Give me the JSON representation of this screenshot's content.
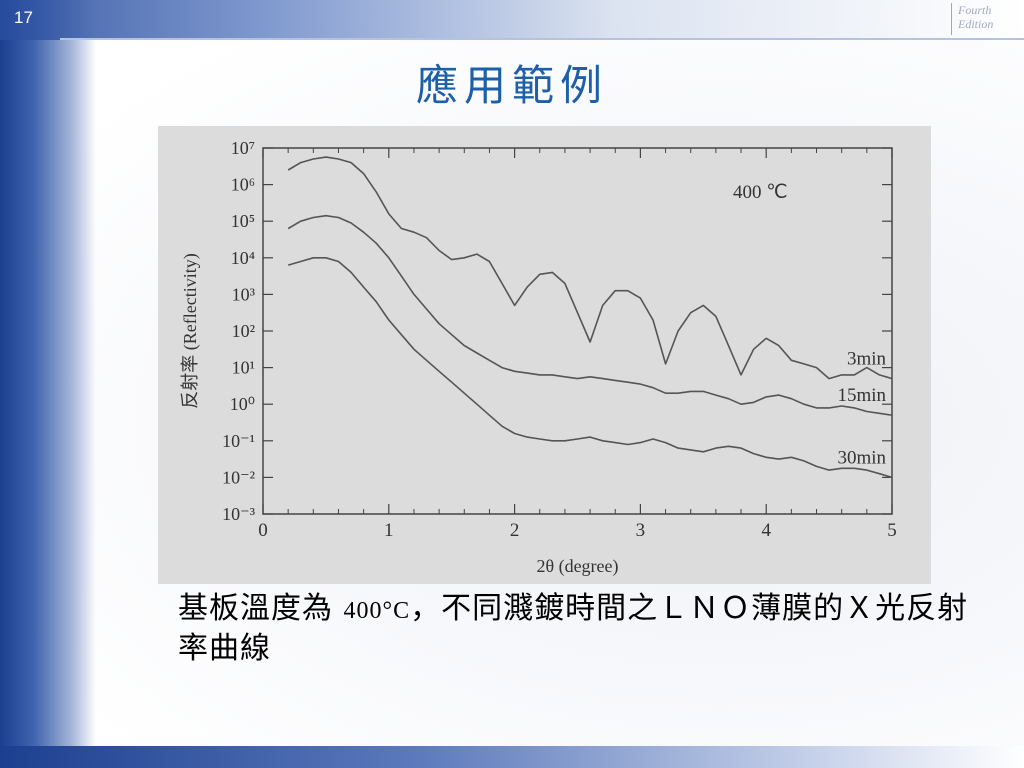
{
  "slide": {
    "number": "17",
    "edition": "Fourth Edition",
    "title": "應用範例"
  },
  "caption": {
    "prefix": "基板溫度為",
    "formula": "400°C",
    "suffix": "，不同濺鍍時間之ＬＮＯ薄膜的Ｘ光反射率曲線"
  },
  "chart_data": {
    "type": "line",
    "annotation": "400 ℃",
    "xlabel": "2θ (degree)",
    "ylabel": "反射率 (Reflectivity)",
    "xlim": [
      0,
      5
    ],
    "ylim": [
      -3,
      7
    ],
    "y_scale": "log",
    "x_ticks": [
      "0",
      "1",
      "2",
      "3",
      "4",
      "5"
    ],
    "y_ticks": [
      "10⁷",
      "10⁶",
      "10⁵",
      "10⁴",
      "10³",
      "10²",
      "10¹",
      "10⁰",
      "10⁻¹",
      "10⁻²",
      "10⁻³"
    ],
    "series": [
      {
        "name": "3min",
        "x": [
          0.2,
          0.3,
          0.4,
          0.5,
          0.6,
          0.7,
          0.8,
          0.9,
          1.0,
          1.1,
          1.2,
          1.3,
          1.4,
          1.5,
          1.6,
          1.7,
          1.8,
          1.9,
          2.0,
          2.1,
          2.2,
          2.3,
          2.4,
          2.5,
          2.6,
          2.7,
          2.8,
          2.9,
          3.0,
          3.1,
          3.2,
          3.3,
          3.4,
          3.5,
          3.6,
          3.7,
          3.8,
          3.9,
          4.0,
          4.1,
          4.2,
          4.3,
          4.4,
          4.5,
          4.6,
          4.7,
          4.8,
          4.9,
          5.0
        ],
        "log10_y": [
          6.4,
          6.6,
          6.7,
          6.75,
          6.7,
          6.6,
          6.3,
          5.8,
          5.2,
          4.8,
          4.7,
          4.55,
          4.2,
          3.95,
          4.0,
          4.1,
          3.9,
          3.3,
          2.7,
          3.2,
          3.55,
          3.6,
          3.3,
          2.5,
          1.7,
          2.7,
          3.1,
          3.1,
          2.9,
          2.3,
          1.1,
          2.0,
          2.5,
          2.7,
          2.4,
          1.6,
          0.8,
          1.5,
          1.8,
          1.6,
          1.2,
          1.1,
          1.0,
          0.7,
          0.8,
          0.8,
          1.0,
          0.8,
          0.7
        ]
      },
      {
        "name": "15min",
        "x": [
          0.2,
          0.3,
          0.4,
          0.5,
          0.6,
          0.7,
          0.8,
          0.9,
          1.0,
          1.1,
          1.2,
          1.3,
          1.4,
          1.5,
          1.6,
          1.7,
          1.8,
          1.9,
          2.0,
          2.1,
          2.2,
          2.3,
          2.4,
          2.5,
          2.6,
          2.7,
          2.8,
          2.9,
          3.0,
          3.1,
          3.2,
          3.3,
          3.4,
          3.5,
          3.6,
          3.7,
          3.8,
          3.9,
          4.0,
          4.1,
          4.2,
          4.3,
          4.4,
          4.5,
          4.6,
          4.7,
          4.8,
          4.9,
          5.0
        ],
        "log10_y": [
          4.8,
          5.0,
          5.1,
          5.15,
          5.1,
          4.95,
          4.7,
          4.4,
          4.0,
          3.5,
          3.0,
          2.6,
          2.2,
          1.9,
          1.6,
          1.4,
          1.2,
          1.0,
          0.9,
          0.85,
          0.8,
          0.8,
          0.75,
          0.7,
          0.75,
          0.7,
          0.65,
          0.6,
          0.55,
          0.45,
          0.3,
          0.3,
          0.35,
          0.35,
          0.25,
          0.15,
          0.0,
          0.05,
          0.2,
          0.25,
          0.15,
          0.0,
          -0.1,
          -0.1,
          -0.05,
          -0.1,
          -0.2,
          -0.25,
          -0.3
        ]
      },
      {
        "name": "30min",
        "x": [
          0.2,
          0.3,
          0.4,
          0.5,
          0.6,
          0.7,
          0.8,
          0.9,
          1.0,
          1.1,
          1.2,
          1.3,
          1.4,
          1.5,
          1.6,
          1.7,
          1.8,
          1.9,
          2.0,
          2.1,
          2.2,
          2.3,
          2.4,
          2.5,
          2.6,
          2.7,
          2.8,
          2.9,
          3.0,
          3.1,
          3.2,
          3.3,
          3.4,
          3.5,
          3.6,
          3.7,
          3.8,
          3.9,
          4.0,
          4.1,
          4.2,
          4.3,
          4.4,
          4.5,
          4.6,
          4.7,
          4.8,
          4.9,
          5.0
        ],
        "log10_y": [
          3.8,
          3.9,
          4.0,
          4.0,
          3.9,
          3.6,
          3.2,
          2.8,
          2.3,
          1.9,
          1.5,
          1.2,
          0.9,
          0.6,
          0.3,
          0.0,
          -0.3,
          -0.6,
          -0.8,
          -0.9,
          -0.95,
          -1.0,
          -1.0,
          -0.95,
          -0.9,
          -1.0,
          -1.05,
          -1.1,
          -1.05,
          -0.95,
          -1.05,
          -1.2,
          -1.25,
          -1.3,
          -1.2,
          -1.15,
          -1.2,
          -1.35,
          -1.45,
          -1.5,
          -1.45,
          -1.55,
          -1.7,
          -1.8,
          -1.75,
          -1.75,
          -1.8,
          -1.9,
          -2.0
        ]
      }
    ]
  }
}
